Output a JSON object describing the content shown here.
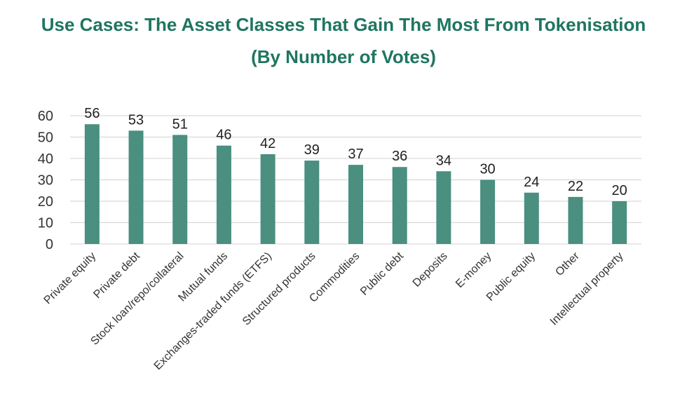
{
  "title_line1": "Use Cases: The Asset Classes That Gain The Most From Tokenisation",
  "title_line2": "(By Number of Votes)",
  "colors": {
    "title": "#1f7560",
    "bar": "#4a8f80",
    "grid": "#d9d9d9"
  },
  "chart_data": {
    "type": "bar",
    "title": "Use Cases: The Asset Classes That Gain The Most From Tokenisation (By Number of Votes)",
    "xlabel": "",
    "ylabel": "",
    "ylim": [
      0,
      60
    ],
    "yticks": [
      0,
      10,
      20,
      30,
      40,
      50,
      60
    ],
    "grid": true,
    "legend": "none",
    "categories": [
      "Private equity",
      "Private debt",
      "Stock loan/repo/collateral",
      "Mutual funds",
      "Exchanges-traded funds (ETFS)",
      "Structured products",
      "Commodities",
      "Public debt",
      "Deposits",
      "E-money",
      "Public equity",
      "Other",
      "Intellectual property"
    ],
    "values": [
      56,
      53,
      51,
      46,
      42,
      39,
      37,
      36,
      34,
      30,
      24,
      22,
      20
    ]
  }
}
